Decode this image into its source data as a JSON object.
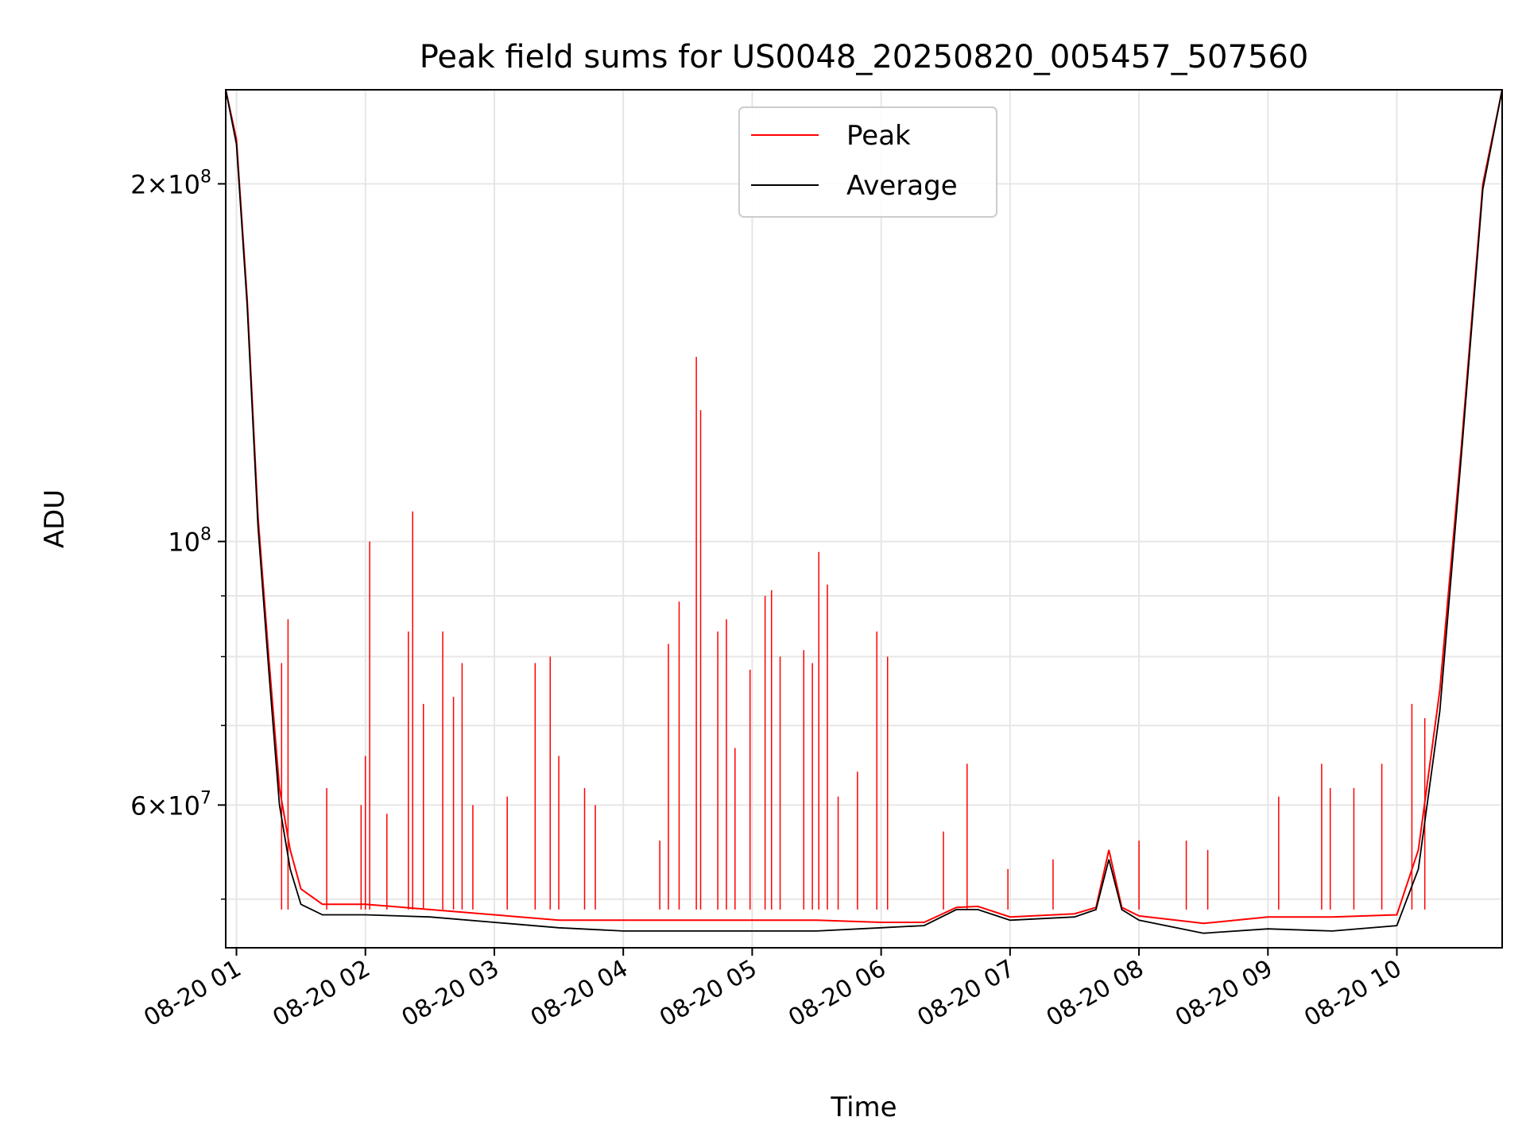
{
  "chart_data": {
    "type": "line",
    "title": "Peak field sums for US0048_20250820_005457_507560",
    "xlabel": "Time",
    "ylabel": "ADU",
    "y_scale": "log",
    "grid": true,
    "legend_position": "top-center",
    "x_range": [
      "2025-08-20 00:55",
      "2025-08-20 10:49"
    ],
    "ylim": [
      45500000,
      240000000
    ],
    "x_ticks": [
      {
        "label": "08-20 01",
        "t": "2025-08-20 01:00"
      },
      {
        "label": "08-20 02",
        "t": "2025-08-20 02:00"
      },
      {
        "label": "08-20 03",
        "t": "2025-08-20 03:00"
      },
      {
        "label": "08-20 04",
        "t": "2025-08-20 04:00"
      },
      {
        "label": "08-20 05",
        "t": "2025-08-20 05:00"
      },
      {
        "label": "08-20 06",
        "t": "2025-08-20 06:00"
      },
      {
        "label": "08-20 07",
        "t": "2025-08-20 07:00"
      },
      {
        "label": "08-20 08",
        "t": "2025-08-20 08:00"
      },
      {
        "label": "08-20 09",
        "t": "2025-08-20 09:00"
      },
      {
        "label": "08-20 10",
        "t": "2025-08-20 10:00"
      }
    ],
    "y_ticks_major": [
      {
        "value": 60000000,
        "mantissa": "6",
        "exp": "7"
      },
      {
        "value": 100000000,
        "mantissa": "",
        "exp": "8"
      },
      {
        "value": 200000000,
        "mantissa": "2",
        "exp": "8"
      }
    ],
    "y_ticks_minor": [
      50000000,
      70000000,
      80000000,
      90000000
    ],
    "series": [
      {
        "name": "Peak",
        "color": "#ff0000",
        "points": [
          [
            "2025-08-20 00:55",
            240000000
          ],
          [
            "2025-08-20 01:00",
            218000000
          ],
          [
            "2025-08-20 01:05",
            160000000
          ],
          [
            "2025-08-20 01:10",
            105000000
          ],
          [
            "2025-08-20 01:15",
            80000000
          ],
          [
            "2025-08-20 01:20",
            62000000
          ],
          [
            "2025-08-20 01:25",
            55000000
          ],
          [
            "2025-08-20 01:30",
            51000000
          ],
          [
            "2025-08-20 01:40",
            49500000
          ],
          [
            "2025-08-20 02:00",
            49500000
          ],
          [
            "2025-08-20 02:30",
            49000000
          ],
          [
            "2025-08-20 03:00",
            48500000
          ],
          [
            "2025-08-20 03:30",
            48000000
          ],
          [
            "2025-08-20 04:00",
            48000000
          ],
          [
            "2025-08-20 04:30",
            48000000
          ],
          [
            "2025-08-20 05:00",
            48000000
          ],
          [
            "2025-08-20 05:30",
            48000000
          ],
          [
            "2025-08-20 06:00",
            47800000
          ],
          [
            "2025-08-20 06:20",
            47800000
          ],
          [
            "2025-08-20 06:35",
            49200000
          ],
          [
            "2025-08-20 06:45",
            49300000
          ],
          [
            "2025-08-20 07:00",
            48300000
          ],
          [
            "2025-08-20 07:30",
            48600000
          ],
          [
            "2025-08-20 07:40",
            49200000
          ],
          [
            "2025-08-20 07:46",
            55000000
          ],
          [
            "2025-08-20 07:52",
            49200000
          ],
          [
            "2025-08-20 08:00",
            48400000
          ],
          [
            "2025-08-20 08:30",
            47700000
          ],
          [
            "2025-08-20 09:00",
            48300000
          ],
          [
            "2025-08-20 09:30",
            48300000
          ],
          [
            "2025-08-20 10:00",
            48500000
          ],
          [
            "2025-08-20 10:10",
            55000000
          ],
          [
            "2025-08-20 10:20",
            75000000
          ],
          [
            "2025-08-20 10:30",
            120000000
          ],
          [
            "2025-08-20 10:40",
            200000000
          ],
          [
            "2025-08-20 10:49",
            240000000
          ]
        ],
        "spikes": [
          [
            "2025-08-20 01:24",
            86000000
          ],
          [
            "2025-08-20 01:21",
            79000000
          ],
          [
            "2025-08-20 01:42",
            62000000
          ],
          [
            "2025-08-20 01:58",
            60000000
          ],
          [
            "2025-08-20 02:00",
            66000000
          ],
          [
            "2025-08-20 02:02",
            100000000
          ],
          [
            "2025-08-20 02:10",
            59000000
          ],
          [
            "2025-08-20 02:20",
            84000000
          ],
          [
            "2025-08-20 02:22",
            106000000
          ],
          [
            "2025-08-20 02:27",
            73000000
          ],
          [
            "2025-08-20 02:36",
            84000000
          ],
          [
            "2025-08-20 02:41",
            74000000
          ],
          [
            "2025-08-20 02:45",
            79000000
          ],
          [
            "2025-08-20 02:50",
            60000000
          ],
          [
            "2025-08-20 03:06",
            61000000
          ],
          [
            "2025-08-20 03:19",
            79000000
          ],
          [
            "2025-08-20 03:26",
            80000000
          ],
          [
            "2025-08-20 03:30",
            66000000
          ],
          [
            "2025-08-20 03:42",
            62000000
          ],
          [
            "2025-08-20 03:47",
            60000000
          ],
          [
            "2025-08-20 04:17",
            56000000
          ],
          [
            "2025-08-20 04:21",
            82000000
          ],
          [
            "2025-08-20 04:26",
            89000000
          ],
          [
            "2025-08-20 04:34",
            143000000
          ],
          [
            "2025-08-20 04:36",
            129000000
          ],
          [
            "2025-08-20 04:44",
            84000000
          ],
          [
            "2025-08-20 04:48",
            86000000
          ],
          [
            "2025-08-20 04:52",
            67000000
          ],
          [
            "2025-08-20 04:59",
            78000000
          ],
          [
            "2025-08-20 05:06",
            90000000
          ],
          [
            "2025-08-20 05:09",
            91000000
          ],
          [
            "2025-08-20 05:13",
            80000000
          ],
          [
            "2025-08-20 05:24",
            81000000
          ],
          [
            "2025-08-20 05:28",
            79000000
          ],
          [
            "2025-08-20 05:31",
            98000000
          ],
          [
            "2025-08-20 05:35",
            92000000
          ],
          [
            "2025-08-20 05:40",
            61000000
          ],
          [
            "2025-08-20 05:49",
            64000000
          ],
          [
            "2025-08-20 05:58",
            84000000
          ],
          [
            "2025-08-20 06:03",
            80000000
          ],
          [
            "2025-08-20 06:29",
            57000000
          ],
          [
            "2025-08-20 06:40",
            65000000
          ],
          [
            "2025-08-20 06:59",
            53000000
          ],
          [
            "2025-08-20 07:20",
            54000000
          ],
          [
            "2025-08-20 08:00",
            56000000
          ],
          [
            "2025-08-20 08:22",
            56000000
          ],
          [
            "2025-08-20 08:32",
            55000000
          ],
          [
            "2025-08-20 09:05",
            61000000
          ],
          [
            "2025-08-20 09:25",
            65000000
          ],
          [
            "2025-08-20 09:29",
            62000000
          ],
          [
            "2025-08-20 09:40",
            62000000
          ],
          [
            "2025-08-20 09:53",
            65000000
          ],
          [
            "2025-08-20 10:07",
            73000000
          ],
          [
            "2025-08-20 10:13",
            71000000
          ]
        ]
      },
      {
        "name": "Average",
        "color": "#000000",
        "points": [
          [
            "2025-08-20 00:55",
            240000000
          ],
          [
            "2025-08-20 01:00",
            216000000
          ],
          [
            "2025-08-20 01:05",
            158000000
          ],
          [
            "2025-08-20 01:10",
            103000000
          ],
          [
            "2025-08-20 01:15",
            78000000
          ],
          [
            "2025-08-20 01:20",
            60000000
          ],
          [
            "2025-08-20 01:25",
            53000000
          ],
          [
            "2025-08-20 01:30",
            49500000
          ],
          [
            "2025-08-20 01:40",
            48500000
          ],
          [
            "2025-08-20 02:00",
            48500000
          ],
          [
            "2025-08-20 02:30",
            48300000
          ],
          [
            "2025-08-20 03:00",
            47800000
          ],
          [
            "2025-08-20 03:30",
            47300000
          ],
          [
            "2025-08-20 04:00",
            47000000
          ],
          [
            "2025-08-20 04:30",
            47000000
          ],
          [
            "2025-08-20 05:00",
            47000000
          ],
          [
            "2025-08-20 05:30",
            47000000
          ],
          [
            "2025-08-20 06:00",
            47300000
          ],
          [
            "2025-08-20 06:20",
            47500000
          ],
          [
            "2025-08-20 06:35",
            49000000
          ],
          [
            "2025-08-20 06:45",
            49000000
          ],
          [
            "2025-08-20 07:00",
            48000000
          ],
          [
            "2025-08-20 07:30",
            48300000
          ],
          [
            "2025-08-20 07:40",
            49000000
          ],
          [
            "2025-08-20 07:46",
            54000000
          ],
          [
            "2025-08-20 07:52",
            49000000
          ],
          [
            "2025-08-20 08:00",
            48000000
          ],
          [
            "2025-08-20 08:30",
            46800000
          ],
          [
            "2025-08-20 09:00",
            47200000
          ],
          [
            "2025-08-20 09:30",
            47000000
          ],
          [
            "2025-08-20 10:00",
            47500000
          ],
          [
            "2025-08-20 10:10",
            53000000
          ],
          [
            "2025-08-20 10:20",
            72000000
          ],
          [
            "2025-08-20 10:30",
            118000000
          ],
          [
            "2025-08-20 10:40",
            198000000
          ],
          [
            "2025-08-20 10:49",
            240000000
          ]
        ]
      }
    ]
  }
}
